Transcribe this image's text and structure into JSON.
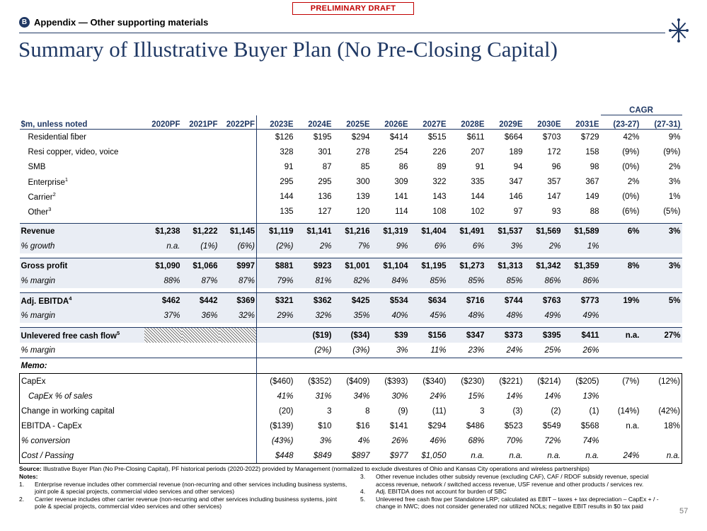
{
  "header": {
    "draft": "PRELIMINARY DRAFT",
    "badge": "B",
    "section": "Appendix — Other supporting materials",
    "title": "Summary of Illustrative Buyer Plan (No Pre-Closing Capital)"
  },
  "table": {
    "stub": "$m, unless noted",
    "cagr": "CAGR",
    "columns": [
      "2020PF",
      "2021PF",
      "2022PF",
      "2023E",
      "2024E",
      "2025E",
      "2026E",
      "2027E",
      "2028E",
      "2029E",
      "2030E",
      "2031E",
      "(23-27)",
      "(27-31)"
    ],
    "rows": [
      {
        "label": "Residential fiber",
        "cells": [
          null,
          null,
          null,
          "$126",
          "$195",
          "$294",
          "$414",
          "$515",
          "$611",
          "$664",
          "$703",
          "$729",
          "42%",
          "9%"
        ]
      },
      {
        "label": "Resi copper, video, voice",
        "cells": [
          null,
          null,
          null,
          "328",
          "301",
          "278",
          "254",
          "226",
          "207",
          "189",
          "172",
          "158",
          "(9%)",
          "(9%)"
        ]
      },
      {
        "label": "SMB",
        "cells": [
          null,
          null,
          null,
          "91",
          "87",
          "85",
          "86",
          "89",
          "91",
          "94",
          "96",
          "98",
          "(0%)",
          "2%"
        ]
      },
      {
        "label": "Enterprise",
        "note": "1",
        "cells": [
          null,
          null,
          null,
          "295",
          "295",
          "300",
          "309",
          "322",
          "335",
          "347",
          "357",
          "367",
          "2%",
          "3%"
        ]
      },
      {
        "label": "Carrier",
        "note": "2",
        "cells": [
          null,
          null,
          null,
          "144",
          "136",
          "139",
          "141",
          "143",
          "144",
          "146",
          "147",
          "149",
          "(0%)",
          "1%"
        ]
      },
      {
        "label": "Other",
        "note": "3",
        "cells": [
          null,
          null,
          null,
          "135",
          "127",
          "120",
          "114",
          "108",
          "102",
          "97",
          "93",
          "88",
          "(6%)",
          "(5%)"
        ]
      },
      {
        "label": "Revenue",
        "cells": [
          "$1,238",
          "$1,222",
          "$1,145",
          "$1,119",
          "$1,141",
          "$1,216",
          "$1,319",
          "$1,404",
          "$1,491",
          "$1,537",
          "$1,569",
          "$1,589",
          "6%",
          "3%"
        ]
      },
      {
        "label": "% growth",
        "cells": [
          "n.a.",
          "(1%)",
          "(6%)",
          "(2%)",
          "2%",
          "7%",
          "9%",
          "6%",
          "6%",
          "3%",
          "2%",
          "1%",
          null,
          null
        ]
      },
      {
        "label": "Gross profit",
        "cells": [
          "$1,090",
          "$1,066",
          "$997",
          "$881",
          "$923",
          "$1,001",
          "$1,104",
          "$1,195",
          "$1,273",
          "$1,313",
          "$1,342",
          "$1,359",
          "8%",
          "3%"
        ]
      },
      {
        "label": "% margin",
        "cells": [
          "88%",
          "87%",
          "87%",
          "79%",
          "81%",
          "82%",
          "84%",
          "85%",
          "85%",
          "85%",
          "86%",
          "86%",
          null,
          null
        ]
      },
      {
        "label": "Adj. EBITDA",
        "note": "4",
        "cells": [
          "$462",
          "$442",
          "$369",
          "$321",
          "$362",
          "$425",
          "$534",
          "$634",
          "$716",
          "$744",
          "$763",
          "$773",
          "19%",
          "5%"
        ]
      },
      {
        "label": "% margin",
        "cells": [
          "37%",
          "36%",
          "32%",
          "29%",
          "32%",
          "35%",
          "40%",
          "45%",
          "48%",
          "48%",
          "49%",
          "49%",
          null,
          null
        ]
      },
      {
        "label": "Unlevered free cash flow",
        "note": "5",
        "cells": [
          null,
          null,
          null,
          null,
          "($19)",
          "($34)",
          "$39",
          "$156",
          "$347",
          "$373",
          "$395",
          "$411",
          "n.a.",
          "27%"
        ]
      },
      {
        "label": "% margin",
        "cells": [
          null,
          null,
          null,
          null,
          "(2%)",
          "(3%)",
          "3%",
          "11%",
          "23%",
          "24%",
          "25%",
          "26%",
          null,
          null
        ]
      }
    ],
    "memo_label": "Memo:",
    "memo": [
      {
        "label": "CapEx",
        "cells": [
          null,
          null,
          null,
          "($460)",
          "($352)",
          "($409)",
          "($393)",
          "($340)",
          "($230)",
          "($221)",
          "($214)",
          "($205)",
          "(7%)",
          "(12%)"
        ]
      },
      {
        "label": "CapEx % of sales",
        "cells": [
          null,
          null,
          null,
          "41%",
          "31%",
          "34%",
          "30%",
          "24%",
          "15%",
          "14%",
          "14%",
          "13%",
          null,
          null
        ]
      },
      {
        "label": "Change in working capital",
        "cells": [
          null,
          null,
          null,
          "(20)",
          "3",
          "8",
          "(9)",
          "(11)",
          "3",
          "(3)",
          "(2)",
          "(1)",
          "(14%)",
          "(42%)"
        ]
      },
      {
        "label": "EBITDA - CapEx",
        "cells": [
          null,
          null,
          null,
          "($139)",
          "$10",
          "$16",
          "$141",
          "$294",
          "$486",
          "$523",
          "$549",
          "$568",
          "n.a.",
          "18%"
        ]
      },
      {
        "label": "% conversion",
        "cells": [
          null,
          null,
          null,
          "(43%)",
          "3%",
          "4%",
          "26%",
          "46%",
          "68%",
          "70%",
          "72%",
          "74%",
          null,
          null
        ]
      },
      {
        "label": "Cost / Passing",
        "cells": [
          null,
          null,
          null,
          "$448",
          "$849",
          "$897",
          "$977",
          "$1,050",
          "n.a.",
          "n.a.",
          "n.a.",
          "n.a.",
          "24%",
          "n.a."
        ]
      }
    ]
  },
  "footer": {
    "source_label": "Source:",
    "source": "Illustrative Buyer Plan (No Pre-Closing Capital), PF historical periods (2020-2022) provided by Management (normalized to exclude divestures of Ohio and Kansas City operations and wireless partnerships)",
    "notes_label": "Notes:",
    "notes": [
      {
        "n": "1.",
        "text": "Enterprise revenue includes other commercial revenue (non-recurring and other services including business systems, joint pole & special projects, commercial video services and other services)"
      },
      {
        "n": "2.",
        "text": "Carrier revenue includes other carrier revenue (non-recurring and other services including business systems, joint pole & special projects, commercial video services and other services)"
      },
      {
        "n": "3.",
        "text": "Other revenue includes other subsidy revenue (excluding CAF), CAF / RDOF subsidy revenue, special access revenue, network / switched access revenue, USF revenue and other products / services rev."
      },
      {
        "n": "4.",
        "text": "Adj. EBITDA does not account for burden of SBC"
      },
      {
        "n": "5.",
        "text": "Unlevered free cash flow per Standalone LRP; calculated as EBIT – taxes + tax depreciation – CapEx + / - change in NWC; does not consider generated nor utilized NOLs; negative EBIT results in $0 tax paid"
      }
    ],
    "page": "57"
  }
}
